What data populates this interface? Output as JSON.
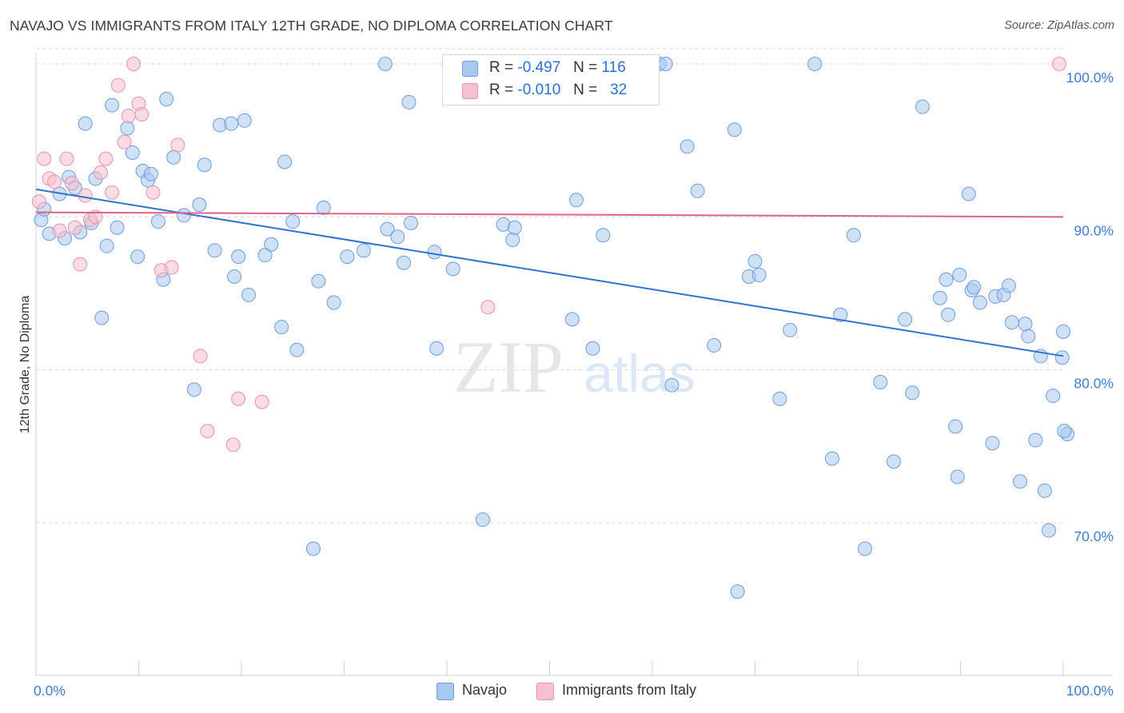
{
  "header": {
    "title": "NAVAJO VS IMMIGRANTS FROM ITALY 12TH GRADE, NO DIPLOMA CORRELATION CHART",
    "source": "Source: ZipAtlas.com"
  },
  "legend": {
    "r_label": "R =",
    "n_label": "N =",
    "rows": [
      {
        "r": "-0.497",
        "n": "116"
      },
      {
        "r": "-0.010",
        "n": "32"
      }
    ]
  },
  "watermark": {
    "zip": "ZIP",
    "atlas": "atlas"
  },
  "colors": {
    "navajo_fill": "#a9c8ef",
    "navajo_stroke": "#6a9de0",
    "navajo_line": "#2f73d0",
    "italy_fill": "#f7c0d0",
    "italy_stroke": "#e890ad",
    "italy_line": "#e0608a",
    "tick_label": "#3f7bd4",
    "grid": "#d8d8d8"
  },
  "chart_data": {
    "type": "scatter",
    "title": "NAVAJO VS IMMIGRANTS FROM ITALY 12TH GRADE, NO DIPLOMA CORRELATION CHART",
    "xlabel": "",
    "ylabel": "12th Grade, No Diploma",
    "xlim": [
      0,
      100
    ],
    "ylim": [
      60,
      101
    ],
    "x_tick_labels": [
      "0.0%",
      "100.0%"
    ],
    "y_ticks": [
      70,
      80,
      90,
      100
    ],
    "y_tick_labels": [
      "70.0%",
      "80.0%",
      "90.0%",
      "100.0%"
    ],
    "grid": true,
    "legend_position": "top-center",
    "series": [
      {
        "name": "Navajo",
        "r": -0.497,
        "n": 116,
        "trend": {
          "x": [
            0,
            100
          ],
          "y": [
            91.8,
            80.9
          ]
        },
        "points": [
          [
            0.5,
            89.8
          ],
          [
            0.8,
            90.5
          ],
          [
            1.3,
            88.9
          ],
          [
            2.3,
            91.5
          ],
          [
            2.8,
            88.6
          ],
          [
            3.2,
            92.6
          ],
          [
            3.8,
            91.9
          ],
          [
            4.3,
            89.0
          ],
          [
            4.8,
            96.1
          ],
          [
            5.4,
            89.6
          ],
          [
            5.8,
            92.5
          ],
          [
            6.4,
            83.4
          ],
          [
            6.9,
            88.1
          ],
          [
            7.4,
            97.3
          ],
          [
            7.9,
            89.3
          ],
          [
            8.9,
            95.8
          ],
          [
            9.4,
            94.2
          ],
          [
            9.9,
            87.4
          ],
          [
            10.4,
            93.0
          ],
          [
            10.9,
            92.4
          ],
          [
            11.2,
            92.8
          ],
          [
            11.9,
            89.7
          ],
          [
            12.4,
            85.9
          ],
          [
            12.7,
            97.7
          ],
          [
            13.4,
            93.9
          ],
          [
            14.4,
            90.1
          ],
          [
            15.4,
            78.7
          ],
          [
            15.9,
            90.8
          ],
          [
            16.4,
            93.4
          ],
          [
            17.4,
            87.8
          ],
          [
            17.9,
            96.0
          ],
          [
            19.0,
            96.1
          ],
          [
            19.3,
            86.1
          ],
          [
            19.7,
            87.4
          ],
          [
            20.3,
            96.3
          ],
          [
            20.7,
            84.9
          ],
          [
            22.3,
            87.5
          ],
          [
            22.9,
            88.2
          ],
          [
            23.9,
            82.8
          ],
          [
            24.2,
            93.6
          ],
          [
            25.0,
            89.7
          ],
          [
            25.4,
            81.3
          ],
          [
            27.0,
            68.3
          ],
          [
            27.5,
            85.8
          ],
          [
            28.0,
            90.6
          ],
          [
            29.0,
            84.4
          ],
          [
            30.3,
            87.4
          ],
          [
            31.9,
            87.8
          ],
          [
            34.0,
            100.0
          ],
          [
            34.2,
            89.2
          ],
          [
            35.2,
            88.7
          ],
          [
            35.8,
            87.0
          ],
          [
            36.3,
            97.5
          ],
          [
            36.5,
            89.6
          ],
          [
            38.8,
            87.7
          ],
          [
            39.0,
            81.4
          ],
          [
            40.6,
            86.6
          ],
          [
            43.5,
            70.2
          ],
          [
            45.5,
            89.5
          ],
          [
            46.4,
            88.5
          ],
          [
            46.6,
            89.3
          ],
          [
            52.2,
            83.3
          ],
          [
            52.6,
            91.1
          ],
          [
            52.9,
            100.0
          ],
          [
            54.2,
            81.4
          ],
          [
            55.2,
            88.8
          ],
          [
            60.7,
            100.0
          ],
          [
            61.3,
            100.0
          ],
          [
            61.9,
            79.0
          ],
          [
            63.4,
            94.6
          ],
          [
            64.4,
            91.7
          ],
          [
            66.0,
            81.6
          ],
          [
            68.0,
            95.7
          ],
          [
            68.3,
            65.5
          ],
          [
            69.4,
            86.1
          ],
          [
            70.0,
            87.1
          ],
          [
            70.4,
            86.2
          ],
          [
            72.4,
            78.1
          ],
          [
            73.4,
            82.6
          ],
          [
            75.8,
            100.0
          ],
          [
            77.5,
            74.2
          ],
          [
            78.3,
            83.6
          ],
          [
            79.6,
            88.8
          ],
          [
            80.7,
            68.3
          ],
          [
            82.2,
            79.2
          ],
          [
            83.5,
            74.0
          ],
          [
            84.6,
            83.3
          ],
          [
            85.3,
            78.5
          ],
          [
            86.3,
            97.2
          ],
          [
            88.0,
            84.7
          ],
          [
            88.6,
            85.9
          ],
          [
            88.8,
            83.6
          ],
          [
            89.5,
            76.3
          ],
          [
            89.7,
            73.0
          ],
          [
            89.9,
            86.2
          ],
          [
            90.8,
            91.5
          ],
          [
            91.1,
            85.2
          ],
          [
            91.3,
            85.4
          ],
          [
            91.9,
            84.4
          ],
          [
            93.1,
            75.2
          ],
          [
            93.4,
            84.8
          ],
          [
            94.2,
            84.9
          ],
          [
            94.7,
            85.5
          ],
          [
            95.0,
            83.1
          ],
          [
            95.8,
            72.7
          ],
          [
            96.3,
            83.0
          ],
          [
            96.6,
            82.2
          ],
          [
            97.3,
            75.4
          ],
          [
            97.8,
            80.9
          ],
          [
            98.2,
            72.1
          ],
          [
            98.6,
            69.5
          ],
          [
            99.0,
            78.3
          ],
          [
            99.9,
            80.8
          ],
          [
            100.0,
            82.5
          ],
          [
            100.4,
            75.8
          ],
          [
            100.1,
            76.0
          ]
        ]
      },
      {
        "name": "Immigrants from Italy",
        "r": -0.01,
        "n": 32,
        "trend": {
          "x": [
            0,
            100
          ],
          "y": [
            90.3,
            90.0
          ]
        },
        "points": [
          [
            0.3,
            91.0
          ],
          [
            0.8,
            93.8
          ],
          [
            1.3,
            92.5
          ],
          [
            1.8,
            92.3
          ],
          [
            2.3,
            89.1
          ],
          [
            3.0,
            93.8
          ],
          [
            3.5,
            92.2
          ],
          [
            3.8,
            89.3
          ],
          [
            4.3,
            86.9
          ],
          [
            4.8,
            91.4
          ],
          [
            5.3,
            89.8
          ],
          [
            5.8,
            90.0
          ],
          [
            6.3,
            92.9
          ],
          [
            6.8,
            93.8
          ],
          [
            7.4,
            91.6
          ],
          [
            8.0,
            98.6
          ],
          [
            8.6,
            94.9
          ],
          [
            9.0,
            96.6
          ],
          [
            9.5,
            100.0
          ],
          [
            10.0,
            97.4
          ],
          [
            10.3,
            96.7
          ],
          [
            11.4,
            91.6
          ],
          [
            12.2,
            86.5
          ],
          [
            13.2,
            86.7
          ],
          [
            13.8,
            94.7
          ],
          [
            16.0,
            80.9
          ],
          [
            16.7,
            76.0
          ],
          [
            19.2,
            75.1
          ],
          [
            19.7,
            78.1
          ],
          [
            22.0,
            77.9
          ],
          [
            44.0,
            84.1
          ],
          [
            99.6,
            100.0
          ]
        ]
      }
    ]
  },
  "bottom_legend": {
    "items": [
      {
        "label": "Navajo"
      },
      {
        "label": "Immigrants from Italy"
      }
    ]
  }
}
